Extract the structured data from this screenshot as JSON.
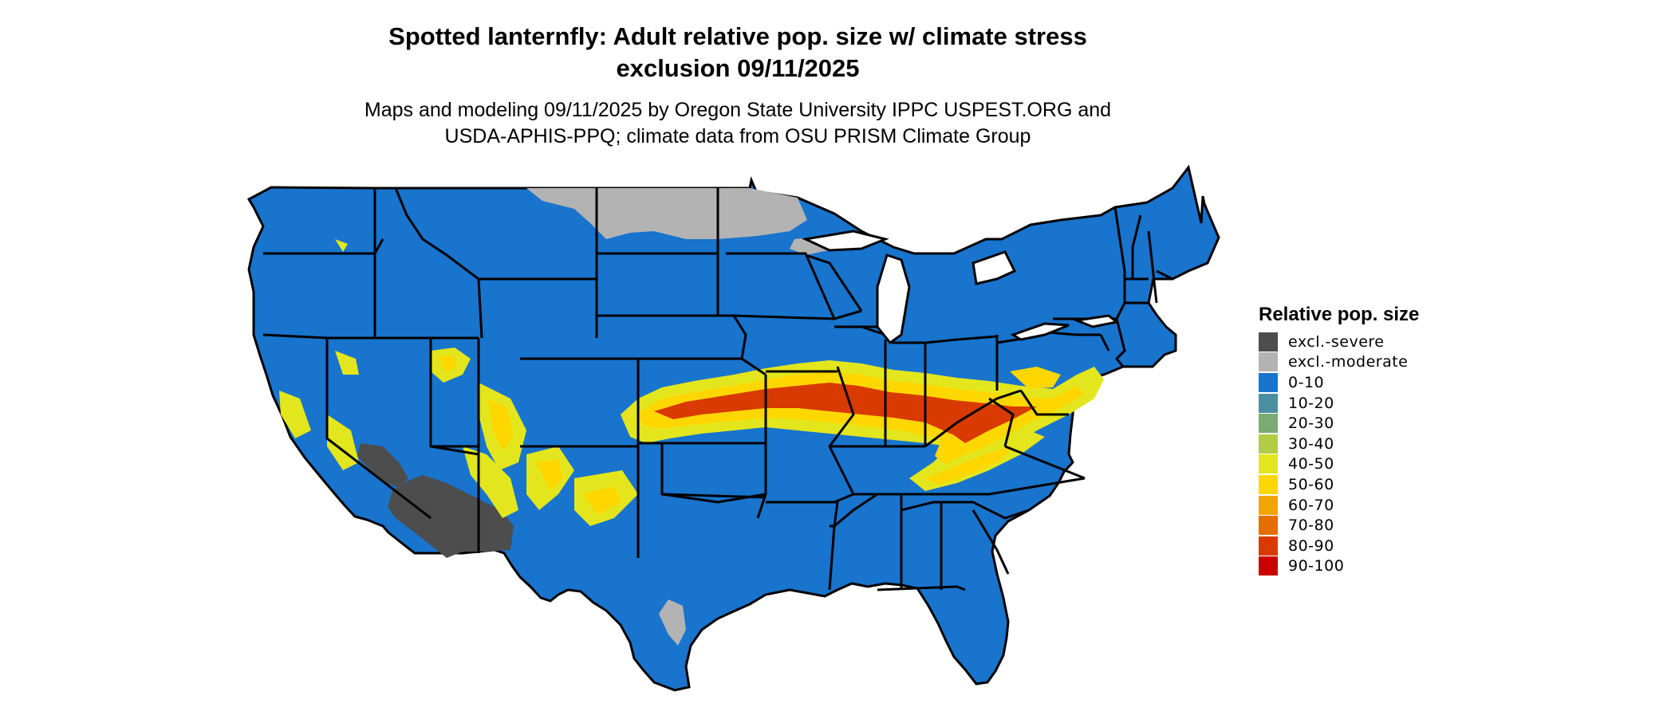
{
  "header": {
    "title_line1": "Spotted lanternfly: Adult relative pop. size w/ climate stress",
    "title_line2": "exclusion 09/11/2025",
    "subtitle_line1": "Maps and modeling 09/11/2025 by Oregon State University IPPC USPEST.ORG and",
    "subtitle_line2": "USDA-APHIS-PPQ; climate data from OSU PRISM Climate Group"
  },
  "legend": {
    "title": "Relative pop. size",
    "items": [
      {
        "label": "excl.-severe",
        "color": "#4d4d4d"
      },
      {
        "label": "excl.-moderate",
        "color": "#b3b3b3"
      },
      {
        "label": "0-10",
        "color": "#1874cd"
      },
      {
        "label": "10-20",
        "color": "#4a8fa0"
      },
      {
        "label": "20-30",
        "color": "#7aab72"
      },
      {
        "label": "30-40",
        "color": "#b2cc44"
      },
      {
        "label": "40-50",
        "color": "#e3e61c"
      },
      {
        "label": "50-60",
        "color": "#ffd700"
      },
      {
        "label": "60-70",
        "color": "#f0a500"
      },
      {
        "label": "70-80",
        "color": "#e46f00"
      },
      {
        "label": "80-90",
        "color": "#d93a00"
      },
      {
        "label": "90-100",
        "color": "#cc0000"
      }
    ]
  },
  "map": {
    "base_color": "#1874cd",
    "border_color": "#000000",
    "hot_color": "#ffd700",
    "warm_color": "#e3e61c",
    "core_color": "#d93a00",
    "excl_severe_color": "#4d4d4d",
    "excl_moderate_color": "#b3b3b3"
  }
}
